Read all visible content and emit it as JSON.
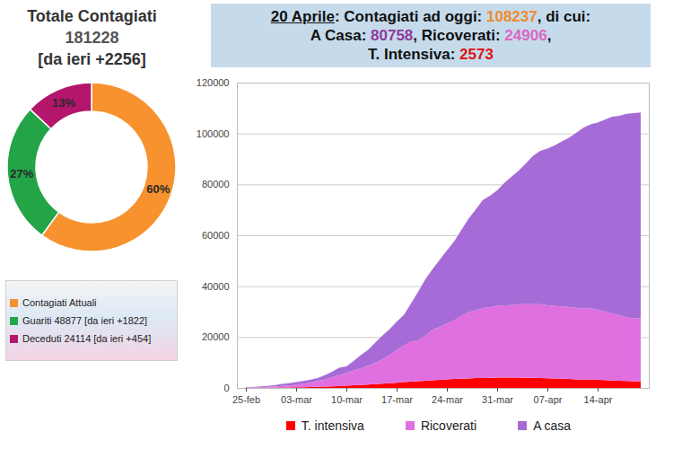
{
  "chart_data": [
    {
      "type": "pie",
      "title": "Totale Contagiati",
      "subtitle": "181228",
      "annotations": [
        "[da ieri +2256]"
      ],
      "categories": [
        "Contagiati Attuali",
        "Guariti 48877 [da ieri +1822]",
        "Deceduti 24114 [da ieri +454]"
      ],
      "values": [
        60,
        27,
        13
      ],
      "value_labels": [
        "60%",
        "27%",
        "13%"
      ],
      "colors": [
        "#f7922e",
        "#22a447",
        "#b3166b"
      ],
      "data_labels": true,
      "legend": "bottom"
    },
    {
      "type": "area",
      "title": [
        [
          {
            "text": "20 Aprile",
            "underline": true
          },
          {
            "text": ": Contagiati ad oggi: "
          },
          {
            "text": "108237",
            "color": "#ef8a2a"
          },
          {
            "text": ", di cui:"
          }
        ],
        [
          {
            "text": "A Casa: "
          },
          {
            "text": "80758",
            "color": "#8e3a9c"
          },
          {
            "text": ", Ricoverati: "
          },
          {
            "text": "24906",
            "color": "#d966c4"
          },
          {
            "text": ","
          }
        ],
        [
          {
            "text": "T. Intensiva: "
          },
          {
            "text": "2573",
            "color": "#e01010"
          }
        ]
      ],
      "stacked": true,
      "grid": true,
      "legend": "bottom",
      "categories": [
        "25-feb",
        null,
        null,
        null,
        null,
        null,
        null,
        "03-mar",
        null,
        null,
        null,
        null,
        null,
        null,
        "10-mar",
        null,
        null,
        null,
        null,
        null,
        null,
        "17-mar",
        null,
        null,
        null,
        null,
        null,
        null,
        "24-mar",
        null,
        null,
        null,
        null,
        null,
        null,
        "31-mar",
        null,
        null,
        null,
        null,
        null,
        null,
        "07-apr",
        null,
        null,
        null,
        null,
        null,
        null,
        "14-apr",
        null,
        null,
        null,
        null,
        null,
        null
      ],
      "series": [
        {
          "name": "T. intensiva",
          "color": "#ff0000",
          "values": [
            35,
            36,
            56,
            64,
            105,
            140,
            166,
            229,
            295,
            351,
            462,
            567,
            650,
            733,
            877,
            1028,
            1153,
            1328,
            1518,
            1672,
            1851,
            2060,
            2257,
            2498,
            2655,
            2857,
            3009,
            3204,
            3396,
            3489,
            3612,
            3732,
            3856,
            3906,
            3981,
            4023,
            4035,
            4053,
            4068,
            3994,
            3977,
            3898,
            3792,
            3693,
            3605,
            3497,
            3381,
            3343,
            3260,
            3186,
            3079,
            2936,
            2812,
            2733,
            2635,
            2573
          ]
        },
        {
          "name": "Ricoverati",
          "color": "#e070e0",
          "values": [
            114,
            128,
            248,
            345,
            401,
            639,
            742,
            1034,
            1346,
            1790,
            2394,
            2651,
            3557,
            4316,
            5038,
            5838,
            6650,
            7426,
            8372,
            9663,
            11025,
            12894,
            14363,
            15757,
            16020,
            17708,
            19846,
            20692,
            21937,
            23112,
            24753,
            26029,
            26676,
            27386,
            27795,
            28192,
            28403,
            28540,
            28741,
            29010,
            28949,
            28976,
            28718,
            28485,
            28399,
            28242,
            28144,
            27847,
            28023,
            27643,
            26893,
            26373,
            25786,
            25007,
            24753,
            24906
          ]
        },
        {
          "name": "A casa",
          "color": "#a66bd6",
          "values": [
            162,
            221,
            284,
            412,
            543,
            798,
            927,
            1000,
            1065,
            1155,
            1060,
            1843,
            2180,
            2936,
            2599,
            3724,
            5036,
            6201,
            7860,
            9268,
            10197,
            11108,
            12090,
            14935,
            19185,
            22116,
            23783,
            26522,
            28697,
            30920,
            33648,
            36653,
            39533,
            42588,
            43752,
            45420,
            48134,
            50456,
            52579,
            55270,
            58320,
            60313,
            61557,
            63084,
            64873,
            66534,
            68744,
            71063,
            72333,
            73462,
            75446,
            77298,
            78364,
            80031,
            80589,
            80758
          ]
        }
      ],
      "ylim": [
        0,
        120000
      ],
      "yticks": [
        0,
        20000,
        40000,
        60000,
        80000,
        100000,
        120000
      ]
    }
  ]
}
